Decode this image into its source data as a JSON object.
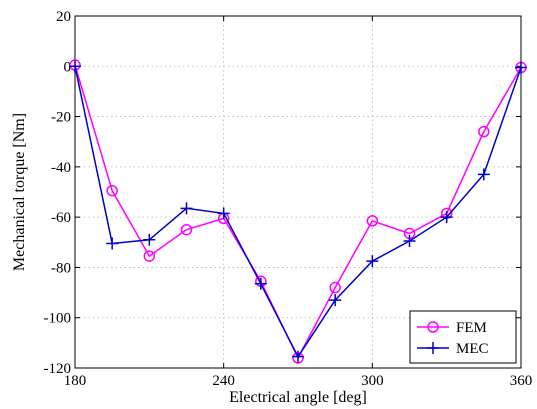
{
  "chart_data": {
    "type": "line",
    "xlabel": "Electrical angle [deg]",
    "ylabel": "Mechanical torque [Nm]",
    "xlim": [
      180,
      360
    ],
    "ylim": [
      -120,
      20
    ],
    "xticks": [
      180,
      240,
      300,
      360
    ],
    "yticks": [
      20,
      0,
      -20,
      -40,
      -60,
      -80,
      -100,
      -120
    ],
    "grid": true,
    "legend_position": "bottom-right",
    "series": [
      {
        "name": "FEM",
        "color": "#ff00ff",
        "marker": "circle",
        "x": [
          180,
          195,
          210,
          225,
          240,
          255,
          270,
          285,
          300,
          315,
          330,
          345,
          360
        ],
        "y": [
          0.5,
          -49.5,
          -75.5,
          -65,
          -60.5,
          -85.5,
          -116,
          -88,
          -61.5,
          -66.5,
          -58.5,
          -26,
          -0.5
        ]
      },
      {
        "name": "MEC",
        "color": "#0000cc",
        "marker": "plus",
        "x": [
          180,
          195,
          210,
          225,
          240,
          255,
          270,
          285,
          300,
          315,
          330,
          345,
          360
        ],
        "y": [
          0,
          -70.5,
          -69,
          -56.5,
          -58.5,
          -86.5,
          -115.5,
          -93,
          -77.5,
          -69.5,
          -60,
          -43,
          -0.5
        ]
      }
    ]
  }
}
